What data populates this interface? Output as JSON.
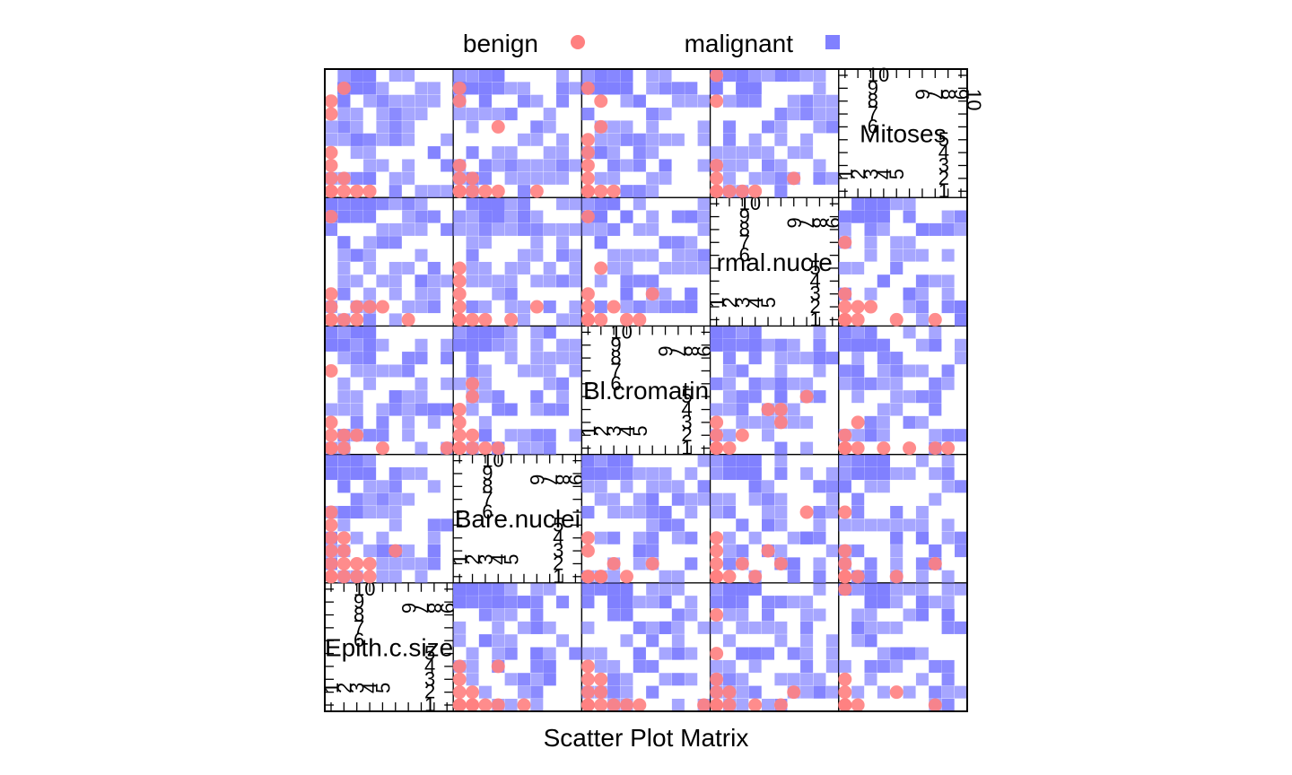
{
  "chart_data": {
    "type": "scatter",
    "title": "",
    "xlabel": "Scatter Plot Matrix",
    "ylabel": "",
    "variables": [
      "Epith.c.size",
      "Bare.nuclei",
      "Bl.cromatin",
      "Normal.nucleoli",
      "Mitoses"
    ],
    "variable_labels_shown": [
      "Epith.c.size",
      "Bare.nuclei",
      "Bl.cromatin",
      "rmal.nucle",
      "Mitoses"
    ],
    "axis_range": [
      1,
      10
    ],
    "tick_labels_low": [
      "1",
      "2",
      "3",
      "4",
      "5"
    ],
    "tick_labels_high": [
      "6",
      "7",
      "8",
      "9",
      "10"
    ],
    "grid": false,
    "legend_placement": "top",
    "series": [
      {
        "name": "benign",
        "marker": "circle",
        "color": "#ff8080",
        "points": {
          "1,0": [
            [
              1,
              1
            ],
            [
              1,
              1
            ],
            [
              2,
              1
            ],
            [
              2,
              1
            ],
            [
              3,
              1
            ],
            [
              4,
              1
            ],
            [
              6,
              1
            ],
            [
              1,
              2
            ],
            [
              1,
              3
            ],
            [
              2,
              2
            ],
            [
              1,
              4
            ],
            [
              4,
              4
            ]
          ],
          "2,0": [
            [
              1,
              1
            ],
            [
              1,
              1
            ],
            [
              2,
              1
            ],
            [
              3,
              1
            ],
            [
              4,
              1
            ],
            [
              1,
              2
            ],
            [
              2,
              2
            ],
            [
              1,
              3
            ],
            [
              1,
              4
            ],
            [
              5,
              1
            ],
            [
              10,
              1
            ],
            [
              2,
              3
            ]
          ],
          "3,0": [
            [
              1,
              1
            ],
            [
              1,
              1
            ],
            [
              2,
              1
            ],
            [
              4,
              1
            ],
            [
              6,
              1
            ],
            [
              1,
              2
            ],
            [
              2,
              2
            ],
            [
              1,
              3
            ],
            [
              1,
              5
            ],
            [
              7,
              2
            ],
            [
              1,
              8
            ]
          ],
          "4,0": [
            [
              1,
              1
            ],
            [
              1,
              2
            ],
            [
              2,
              1
            ],
            [
              1,
              1
            ],
            [
              1,
              3
            ],
            [
              8,
              1
            ],
            [
              1,
              10
            ],
            [
              5,
              2
            ]
          ],
          "0,1": [
            [
              1,
              1
            ],
            [
              1,
              1
            ],
            [
              2,
              1
            ],
            [
              3,
              1
            ],
            [
              4,
              1
            ],
            [
              1,
              2
            ],
            [
              2,
              2
            ],
            [
              3,
              2
            ],
            [
              1,
              3
            ],
            [
              2,
              3
            ],
            [
              1,
              4
            ],
            [
              1,
              5
            ],
            [
              4,
              2
            ],
            [
              2,
              4
            ],
            [
              6,
              3
            ],
            [
              1,
              6
            ]
          ],
          "2,1": [
            [
              1,
              1
            ],
            [
              1,
              1
            ],
            [
              2,
              1
            ],
            [
              3,
              2
            ],
            [
              1,
              3
            ],
            [
              2,
              1
            ],
            [
              1,
              4
            ],
            [
              4,
              1
            ],
            [
              6,
              2
            ]
          ],
          "3,1": [
            [
              1,
              1
            ],
            [
              1,
              1
            ],
            [
              2,
              1
            ],
            [
              3,
              2
            ],
            [
              1,
              2
            ],
            [
              1,
              3
            ],
            [
              1,
              4
            ],
            [
              4,
              1
            ],
            [
              5,
              3
            ],
            [
              6,
              2
            ],
            [
              8,
              6
            ]
          ],
          "4,1": [
            [
              1,
              1
            ],
            [
              1,
              1
            ],
            [
              1,
              2
            ],
            [
              2,
              1
            ],
            [
              1,
              3
            ],
            [
              5,
              1
            ],
            [
              8,
              2
            ],
            [
              1,
              6
            ]
          ],
          "0,2": [
            [
              1,
              1
            ],
            [
              1,
              1
            ],
            [
              2,
              1
            ],
            [
              3,
              2
            ],
            [
              1,
              2
            ],
            [
              2,
              2
            ],
            [
              1,
              3
            ],
            [
              10,
              1
            ],
            [
              1,
              7
            ],
            [
              5,
              1
            ]
          ],
          "1,2": [
            [
              1,
              1
            ],
            [
              1,
              1
            ],
            [
              2,
              1
            ],
            [
              3,
              1
            ],
            [
              4,
              1
            ],
            [
              1,
              2
            ],
            [
              2,
              2
            ],
            [
              1,
              3
            ],
            [
              1,
              4
            ],
            [
              2,
              5
            ],
            [
              2,
              6
            ]
          ],
          "3,2": [
            [
              1,
              1
            ],
            [
              1,
              1
            ],
            [
              2,
              1
            ],
            [
              1,
              2
            ],
            [
              3,
              2
            ],
            [
              1,
              3
            ],
            [
              5,
              4
            ],
            [
              6,
              3
            ],
            [
              8,
              5
            ],
            [
              6,
              4
            ]
          ],
          "4,2": [
            [
              1,
              1
            ],
            [
              1,
              1
            ],
            [
              2,
              1
            ],
            [
              4,
              1
            ],
            [
              6,
              1
            ],
            [
              8,
              1
            ],
            [
              9,
              1
            ],
            [
              1,
              2
            ],
            [
              2,
              3
            ]
          ],
          "0,3": [
            [
              1,
              1
            ],
            [
              1,
              1
            ],
            [
              2,
              1
            ],
            [
              3,
              1
            ],
            [
              4,
              2
            ],
            [
              1,
              2
            ],
            [
              1,
              3
            ],
            [
              3,
              2
            ],
            [
              7,
              1
            ],
            [
              5,
              2
            ],
            [
              1,
              9
            ]
          ],
          "1,3": [
            [
              1,
              1
            ],
            [
              1,
              1
            ],
            [
              2,
              1
            ],
            [
              3,
              1
            ],
            [
              1,
              2
            ],
            [
              1,
              3
            ],
            [
              1,
              4
            ],
            [
              5,
              1
            ],
            [
              7,
              2
            ],
            [
              1,
              5
            ]
          ],
          "2,3": [
            [
              1,
              1
            ],
            [
              1,
              1
            ],
            [
              2,
              1
            ],
            [
              1,
              2
            ],
            [
              3,
              2
            ],
            [
              1,
              3
            ],
            [
              4,
              1
            ],
            [
              5,
              1
            ],
            [
              2,
              5
            ],
            [
              6,
              3
            ],
            [
              1,
              9
            ]
          ],
          "4,3": [
            [
              1,
              1
            ],
            [
              1,
              1
            ],
            [
              2,
              1
            ],
            [
              1,
              2
            ],
            [
              2,
              2
            ],
            [
              1,
              3
            ],
            [
              3,
              2
            ],
            [
              5,
              1
            ],
            [
              1,
              7
            ],
            [
              8,
              1
            ]
          ],
          "0,4": [
            [
              1,
              1
            ],
            [
              1,
              1
            ],
            [
              2,
              1
            ],
            [
              3,
              1
            ],
            [
              4,
              1
            ],
            [
              1,
              2
            ],
            [
              2,
              2
            ],
            [
              1,
              3
            ],
            [
              1,
              4
            ],
            [
              1,
              8
            ],
            [
              2,
              9
            ],
            [
              1,
              7
            ]
          ],
          "1,4": [
            [
              1,
              1
            ],
            [
              1,
              1
            ],
            [
              2,
              1
            ],
            [
              3,
              1
            ],
            [
              4,
              1
            ],
            [
              1,
              2
            ],
            [
              2,
              2
            ],
            [
              1,
              3
            ],
            [
              1,
              9
            ],
            [
              1,
              8
            ],
            [
              7,
              1
            ],
            [
              4,
              6
            ]
          ],
          "2,4": [
            [
              1,
              1
            ],
            [
              1,
              1
            ],
            [
              2,
              1
            ],
            [
              3,
              1
            ],
            [
              1,
              2
            ],
            [
              1,
              3
            ],
            [
              1,
              4
            ],
            [
              1,
              5
            ],
            [
              1,
              9
            ],
            [
              2,
              6
            ],
            [
              2,
              8
            ]
          ],
          "3,4": [
            [
              1,
              1
            ],
            [
              1,
              1
            ],
            [
              1,
              2
            ],
            [
              2,
              1
            ],
            [
              3,
              1
            ],
            [
              1,
              3
            ],
            [
              1,
              10
            ],
            [
              1,
              8
            ],
            [
              4,
              1
            ],
            [
              7,
              2
            ]
          ]
        }
      },
      {
        "name": "malignant",
        "marker": "square",
        "color": "#8080ff",
        "points": "dense overlapping squares across values 1-10 in every off-diagonal panel"
      }
    ]
  },
  "legend": {
    "items": [
      {
        "label": "benign",
        "color": "#ff8080",
        "marker": "circle"
      },
      {
        "label": "malignant",
        "color": "#8080ff",
        "marker": "square"
      }
    ]
  }
}
